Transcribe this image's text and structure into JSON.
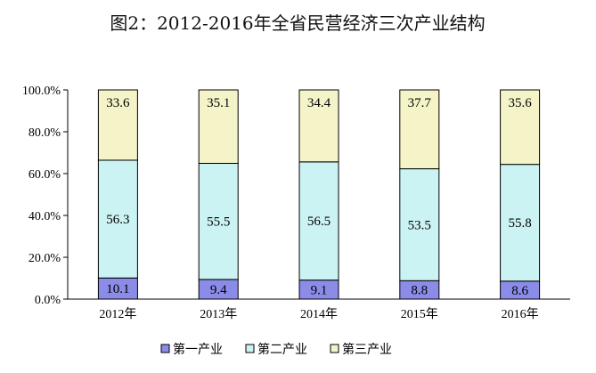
{
  "chart_data": {
    "type": "bar",
    "stacked": true,
    "title": "图2：2012-2016年全省民营经济三次产业结构",
    "categories": [
      "2012年",
      "2013年",
      "2014年",
      "2015年",
      "2016年"
    ],
    "series": [
      {
        "name": "第一产业",
        "color": "#8b8be8",
        "values": [
          10.1,
          9.4,
          9.1,
          8.8,
          8.6
        ]
      },
      {
        "name": "第二产业",
        "color": "#cbf3f3",
        "values": [
          56.3,
          55.5,
          56.5,
          53.5,
          55.8
        ]
      },
      {
        "name": "第三产业",
        "color": "#f5f3c8",
        "values": [
          33.6,
          35.1,
          34.4,
          37.7,
          35.6
        ]
      }
    ],
    "ylim": [
      0,
      100
    ],
    "yticks": [
      "0.0%",
      "20.0%",
      "40.0%",
      "60.0%",
      "80.0%",
      "100.0%"
    ],
    "ytick_values": [
      0,
      20,
      40,
      60,
      80,
      100
    ],
    "xlabel": "",
    "ylabel": "",
    "grid": false,
    "legend_position": "bottom"
  }
}
